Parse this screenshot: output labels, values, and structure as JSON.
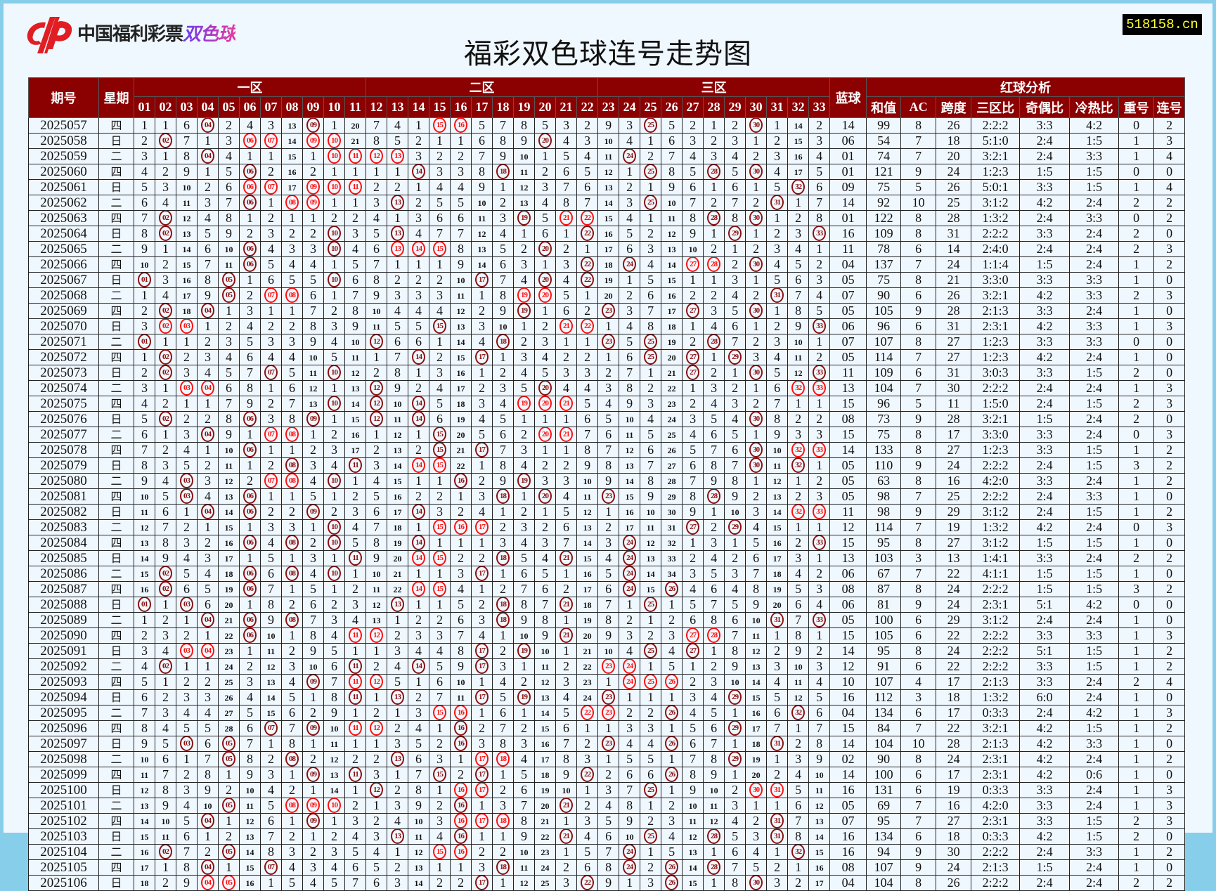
{
  "logo": {
    "text_main": "中国福利彩票",
    "text_game": "双色球"
  },
  "watermark": "518158.cn",
  "title": "福彩双色球连号走势图",
  "colors": {
    "header_bg": "#8b0000",
    "hit_single": "#8b1010",
    "hit_consecutive": "#ff1010",
    "watermark_text": "#ffff33",
    "frame": "#87ceeb",
    "background": "#f0f8ff"
  },
  "headers": {
    "issue": "期号",
    "weekday": "星期",
    "zone1": "一区",
    "zone2": "二区",
    "zone3": "三区",
    "blue": "蓝球",
    "analysis": "红球分析",
    "red_columns": [
      "01",
      "02",
      "03",
      "04",
      "05",
      "06",
      "07",
      "08",
      "09",
      "10",
      "11",
      "12",
      "13",
      "14",
      "15",
      "16",
      "17",
      "18",
      "19",
      "20",
      "21",
      "22",
      "23",
      "24",
      "25",
      "26",
      "27",
      "28",
      "29",
      "30",
      "31",
      "32",
      "33"
    ],
    "analysis_columns": [
      "和值",
      "AC",
      "跨度",
      "三区比",
      "奇偶比",
      "冷热比",
      "重号",
      "连号"
    ]
  },
  "first_row_cells": [
    "1",
    "1",
    "6",
    "04",
    "2",
    "4",
    "3",
    "13",
    "09",
    "1",
    "20",
    "7",
    "4",
    "1",
    "15",
    "16",
    "5",
    "7",
    "8",
    "5",
    "3",
    "2",
    "9",
    "3",
    "25",
    "5",
    "2",
    "1",
    "2",
    "30",
    "1",
    "14",
    "2"
  ],
  "rows": [
    {
      "issue": "2025057",
      "weekday": "四",
      "red": [
        4,
        9,
        15,
        16,
        25,
        30
      ],
      "blue": "14",
      "sum": 99,
      "ac": 8,
      "span": 26,
      "zone_ratio": "2:2:2",
      "odd_even": "3:3",
      "hot_cold": "4:2",
      "repeat": 0,
      "consecutive": 2
    },
    {
      "issue": "2025058",
      "weekday": "日",
      "red": [
        2,
        6,
        7,
        9,
        10,
        20
      ],
      "blue": "06",
      "sum": 54,
      "ac": 7,
      "span": 18,
      "zone_ratio": "5:1:0",
      "odd_even": "2:4",
      "hot_cold": "1:5",
      "repeat": 1,
      "consecutive": 3
    },
    {
      "issue": "2025059",
      "weekday": "二",
      "red": [
        4,
        10,
        11,
        12,
        13,
        24
      ],
      "blue": "01",
      "sum": 74,
      "ac": 7,
      "span": 20,
      "zone_ratio": "3:2:1",
      "odd_even": "2:4",
      "hot_cold": "3:3",
      "repeat": 1,
      "consecutive": 4
    },
    {
      "issue": "2025060",
      "weekday": "四",
      "red": [
        6,
        14,
        18,
        25,
        28,
        30
      ],
      "blue": "01",
      "sum": 121,
      "ac": 9,
      "span": 24,
      "zone_ratio": "1:2:3",
      "odd_even": "1:5",
      "hot_cold": "1:5",
      "repeat": 0,
      "consecutive": 0
    },
    {
      "issue": "2025061",
      "weekday": "日",
      "red": [
        6,
        7,
        9,
        10,
        11,
        32
      ],
      "blue": "09",
      "sum": 75,
      "ac": 5,
      "span": 26,
      "zone_ratio": "5:0:1",
      "odd_even": "3:3",
      "hot_cold": "1:5",
      "repeat": 1,
      "consecutive": 4
    },
    {
      "issue": "2025062",
      "weekday": "二",
      "red": [
        6,
        8,
        9,
        13,
        25,
        31
      ],
      "blue": "14",
      "sum": 92,
      "ac": 10,
      "span": 25,
      "zone_ratio": "3:1:2",
      "odd_even": "4:2",
      "hot_cold": "2:4",
      "repeat": 2,
      "consecutive": 2
    },
    {
      "issue": "2025063",
      "weekday": "四",
      "red": [
        2,
        19,
        21,
        22,
        28,
        30
      ],
      "blue": "01",
      "sum": 122,
      "ac": 8,
      "span": 28,
      "zone_ratio": "1:3:2",
      "odd_even": "2:4",
      "hot_cold": "3:3",
      "repeat": 0,
      "consecutive": 2
    },
    {
      "issue": "2025064",
      "weekday": "日",
      "red": [
        2,
        10,
        13,
        22,
        29,
        33
      ],
      "blue": "16",
      "sum": 109,
      "ac": 8,
      "span": 31,
      "zone_ratio": "2:2:2",
      "odd_even": "3:3",
      "hot_cold": "2:4",
      "repeat": 2,
      "consecutive": 0
    },
    {
      "issue": "2025065",
      "weekday": "二",
      "red": [
        6,
        10,
        13,
        14,
        15,
        20
      ],
      "blue": "11",
      "sum": 78,
      "ac": 6,
      "span": 14,
      "zone_ratio": "2:4:0",
      "odd_even": "2:4",
      "hot_cold": "2:4",
      "repeat": 2,
      "consecutive": 3
    },
    {
      "issue": "2025066",
      "weekday": "四",
      "red": [
        6,
        22,
        24,
        27,
        28,
        30
      ],
      "blue": "04",
      "sum": 137,
      "ac": 7,
      "span": 24,
      "zone_ratio": "1:1:4",
      "odd_even": "1:5",
      "hot_cold": "2:4",
      "repeat": 1,
      "consecutive": 2
    },
    {
      "issue": "2025067",
      "weekday": "日",
      "red": [
        1,
        5,
        10,
        17,
        20,
        22
      ],
      "blue": "05",
      "sum": 75,
      "ac": 8,
      "span": 21,
      "zone_ratio": "3:3:0",
      "odd_even": "3:3",
      "hot_cold": "3:3",
      "repeat": 1,
      "consecutive": 0
    },
    {
      "issue": "2025068",
      "weekday": "二",
      "red": [
        5,
        7,
        8,
        19,
        20,
        31
      ],
      "blue": "07",
      "sum": 90,
      "ac": 6,
      "span": 26,
      "zone_ratio": "3:2:1",
      "odd_even": "4:2",
      "hot_cold": "3:3",
      "repeat": 2,
      "consecutive": 3
    },
    {
      "issue": "2025069",
      "weekday": "四",
      "red": [
        2,
        4,
        19,
        23,
        27,
        30
      ],
      "blue": "05",
      "sum": 105,
      "ac": 9,
      "span": 28,
      "zone_ratio": "2:1:3",
      "odd_even": "3:3",
      "hot_cold": "2:4",
      "repeat": 1,
      "consecutive": 0
    },
    {
      "issue": "2025070",
      "weekday": "日",
      "red": [
        2,
        3,
        15,
        21,
        22,
        33
      ],
      "blue": "06",
      "sum": 96,
      "ac": 6,
      "span": 31,
      "zone_ratio": "2:3:1",
      "odd_even": "4:2",
      "hot_cold": "3:3",
      "repeat": 1,
      "consecutive": 3
    },
    {
      "issue": "2025071",
      "weekday": "二",
      "red": [
        1,
        12,
        18,
        23,
        25,
        28
      ],
      "blue": "07",
      "sum": 107,
      "ac": 8,
      "span": 27,
      "zone_ratio": "1:2:3",
      "odd_even": "3:3",
      "hot_cold": "3:3",
      "repeat": 0,
      "consecutive": 0
    },
    {
      "issue": "2025072",
      "weekday": "四",
      "red": [
        2,
        14,
        17,
        25,
        27,
        29
      ],
      "blue": "05",
      "sum": 114,
      "ac": 7,
      "span": 27,
      "zone_ratio": "1:2:3",
      "odd_even": "4:2",
      "hot_cold": "2:4",
      "repeat": 1,
      "consecutive": 0
    },
    {
      "issue": "2025073",
      "weekday": "日",
      "red": [
        2,
        7,
        10,
        27,
        30,
        33
      ],
      "blue": "11",
      "sum": 109,
      "ac": 6,
      "span": 31,
      "zone_ratio": "3:0:3",
      "odd_even": "3:3",
      "hot_cold": "1:5",
      "repeat": 2,
      "consecutive": 0
    },
    {
      "issue": "2025074",
      "weekday": "二",
      "red": [
        3,
        4,
        12,
        20,
        32,
        33
      ],
      "blue": "13",
      "sum": 104,
      "ac": 7,
      "span": 30,
      "zone_ratio": "2:2:2",
      "odd_even": "2:4",
      "hot_cold": "2:4",
      "repeat": 1,
      "consecutive": 3
    },
    {
      "issue": "2025075",
      "weekday": "四",
      "red": [
        10,
        12,
        14,
        19,
        20,
        21
      ],
      "blue": "15",
      "sum": 96,
      "ac": 5,
      "span": 11,
      "zone_ratio": "1:5:0",
      "odd_even": "2:4",
      "hot_cold": "1:5",
      "repeat": 2,
      "consecutive": 3
    },
    {
      "issue": "2025076",
      "weekday": "日",
      "red": [
        2,
        6,
        9,
        12,
        14,
        30
      ],
      "blue": "08",
      "sum": 73,
      "ac": 9,
      "span": 28,
      "zone_ratio": "3:2:1",
      "odd_even": "1:5",
      "hot_cold": "2:4",
      "repeat": 2,
      "consecutive": 0
    },
    {
      "issue": "2025077",
      "weekday": "二",
      "red": [
        4,
        7,
        8,
        15,
        20,
        21
      ],
      "blue": "15",
      "sum": 75,
      "ac": 8,
      "span": 17,
      "zone_ratio": "3:3:0",
      "odd_even": "3:3",
      "hot_cold": "2:4",
      "repeat": 0,
      "consecutive": 3
    },
    {
      "issue": "2025078",
      "weekday": "四",
      "red": [
        6,
        15,
        17,
        30,
        32,
        33
      ],
      "blue": "14",
      "sum": 133,
      "ac": 8,
      "span": 27,
      "zone_ratio": "1:2:3",
      "odd_even": "3:3",
      "hot_cold": "1:5",
      "repeat": 1,
      "consecutive": 2
    },
    {
      "issue": "2025079",
      "weekday": "日",
      "red": [
        8,
        11,
        14,
        15,
        30,
        32
      ],
      "blue": "05",
      "sum": 110,
      "ac": 9,
      "span": 24,
      "zone_ratio": "2:2:2",
      "odd_even": "2:4",
      "hot_cold": "1:5",
      "repeat": 3,
      "consecutive": 2
    },
    {
      "issue": "2025080",
      "weekday": "二",
      "red": [
        3,
        7,
        8,
        10,
        16,
        19
      ],
      "blue": "05",
      "sum": 63,
      "ac": 8,
      "span": 16,
      "zone_ratio": "4:2:0",
      "odd_even": "3:3",
      "hot_cold": "2:4",
      "repeat": 1,
      "consecutive": 2
    },
    {
      "issue": "2025081",
      "weekday": "四",
      "red": [
        3,
        6,
        18,
        20,
        23,
        28
      ],
      "blue": "05",
      "sum": 98,
      "ac": 7,
      "span": 25,
      "zone_ratio": "2:2:2",
      "odd_even": "2:4",
      "hot_cold": "3:3",
      "repeat": 1,
      "consecutive": 0
    },
    {
      "issue": "2025082",
      "weekday": "日",
      "red": [
        4,
        6,
        9,
        14,
        32,
        33
      ],
      "blue": "11",
      "sum": 98,
      "ac": 9,
      "span": 29,
      "zone_ratio": "3:1:2",
      "odd_even": "2:4",
      "hot_cold": "1:5",
      "repeat": 1,
      "consecutive": 2
    },
    {
      "issue": "2025083",
      "weekday": "二",
      "red": [
        10,
        15,
        16,
        17,
        27,
        29
      ],
      "blue": "12",
      "sum": 114,
      "ac": 7,
      "span": 19,
      "zone_ratio": "1:3:2",
      "odd_even": "4:2",
      "hot_cold": "2:4",
      "repeat": 0,
      "consecutive": 3
    },
    {
      "issue": "2025084",
      "weekday": "四",
      "red": [
        6,
        8,
        10,
        14,
        24,
        33
      ],
      "blue": "15",
      "sum": 95,
      "ac": 8,
      "span": 27,
      "zone_ratio": "3:1:2",
      "odd_even": "1:5",
      "hot_cold": "1:5",
      "repeat": 1,
      "consecutive": 0
    },
    {
      "issue": "2025085",
      "weekday": "日",
      "red": [
        11,
        14,
        15,
        18,
        21,
        24
      ],
      "blue": "13",
      "sum": 103,
      "ac": 3,
      "span": 13,
      "zone_ratio": "1:4:1",
      "odd_even": "3:3",
      "hot_cold": "2:4",
      "repeat": 2,
      "consecutive": 2
    },
    {
      "issue": "2025086",
      "weekday": "二",
      "red": [
        2,
        6,
        8,
        10,
        17,
        24
      ],
      "blue": "06",
      "sum": 67,
      "ac": 7,
      "span": 22,
      "zone_ratio": "4:1:1",
      "odd_even": "1:5",
      "hot_cold": "1:5",
      "repeat": 1,
      "consecutive": 0
    },
    {
      "issue": "2025087",
      "weekday": "四",
      "red": [
        2,
        6,
        14,
        15,
        24,
        26
      ],
      "blue": "08",
      "sum": 87,
      "ac": 8,
      "span": 24,
      "zone_ratio": "2:2:2",
      "odd_even": "1:5",
      "hot_cold": "1:5",
      "repeat": 3,
      "consecutive": 2
    },
    {
      "issue": "2025088",
      "weekday": "日",
      "red": [
        1,
        3,
        13,
        18,
        21,
        25
      ],
      "blue": "06",
      "sum": 81,
      "ac": 9,
      "span": 24,
      "zone_ratio": "2:3:1",
      "odd_even": "5:1",
      "hot_cold": "4:2",
      "repeat": 0,
      "consecutive": 0
    },
    {
      "issue": "2025089",
      "weekday": "二",
      "red": [
        4,
        6,
        8,
        18,
        31,
        33
      ],
      "blue": "05",
      "sum": 100,
      "ac": 6,
      "span": 29,
      "zone_ratio": "3:1:2",
      "odd_even": "2:4",
      "hot_cold": "2:4",
      "repeat": 1,
      "consecutive": 0
    },
    {
      "issue": "2025090",
      "weekday": "四",
      "red": [
        6,
        11,
        12,
        21,
        27,
        28
      ],
      "blue": "15",
      "sum": 105,
      "ac": 6,
      "span": 22,
      "zone_ratio": "2:2:2",
      "odd_even": "3:3",
      "hot_cold": "3:3",
      "repeat": 1,
      "consecutive": 3
    },
    {
      "issue": "2025091",
      "weekday": "日",
      "red": [
        3,
        4,
        17,
        19,
        25,
        27
      ],
      "blue": "14",
      "sum": 95,
      "ac": 8,
      "span": 24,
      "zone_ratio": "2:2:2",
      "odd_even": "5:1",
      "hot_cold": "1:5",
      "repeat": 1,
      "consecutive": 2
    },
    {
      "issue": "2025092",
      "weekday": "二",
      "red": [
        2,
        11,
        14,
        17,
        23,
        24
      ],
      "blue": "12",
      "sum": 91,
      "ac": 6,
      "span": 22,
      "zone_ratio": "2:2:2",
      "odd_even": "3:3",
      "hot_cold": "1:5",
      "repeat": 1,
      "consecutive": 2
    },
    {
      "issue": "2025093",
      "weekday": "四",
      "red": [
        9,
        11,
        12,
        24,
        25,
        26
      ],
      "blue": "10",
      "sum": 107,
      "ac": 4,
      "span": 17,
      "zone_ratio": "2:1:3",
      "odd_even": "3:3",
      "hot_cold": "2:4",
      "repeat": 2,
      "consecutive": 4
    },
    {
      "issue": "2025094",
      "weekday": "日",
      "red": [
        11,
        13,
        17,
        19,
        23,
        29
      ],
      "blue": "16",
      "sum": 112,
      "ac": 3,
      "span": 18,
      "zone_ratio": "1:3:2",
      "odd_even": "6:0",
      "hot_cold": "2:4",
      "repeat": 1,
      "consecutive": 0
    },
    {
      "issue": "2025095",
      "weekday": "二",
      "red": [
        15,
        16,
        22,
        23,
        26,
        32
      ],
      "blue": "04",
      "sum": 134,
      "ac": 6,
      "span": 17,
      "zone_ratio": "0:3:3",
      "odd_even": "2:4",
      "hot_cold": "4:2",
      "repeat": 1,
      "consecutive": 3
    },
    {
      "issue": "2025096",
      "weekday": "四",
      "red": [
        7,
        9,
        11,
        12,
        16,
        29
      ],
      "blue": "15",
      "sum": 84,
      "ac": 7,
      "span": 22,
      "zone_ratio": "3:2:1",
      "odd_even": "4:2",
      "hot_cold": "1:5",
      "repeat": 1,
      "consecutive": 2
    },
    {
      "issue": "2025097",
      "weekday": "日",
      "red": [
        3,
        5,
        16,
        23,
        26,
        31
      ],
      "blue": "14",
      "sum": 104,
      "ac": 10,
      "span": 28,
      "zone_ratio": "2:1:3",
      "odd_even": "4:2",
      "hot_cold": "3:3",
      "repeat": 1,
      "consecutive": 0
    },
    {
      "issue": "2025098",
      "weekday": "二",
      "red": [
        5,
        8,
        13,
        17,
        18,
        29
      ],
      "blue": "02",
      "sum": 90,
      "ac": 8,
      "span": 24,
      "zone_ratio": "2:3:1",
      "odd_even": "4:2",
      "hot_cold": "2:4",
      "repeat": 1,
      "consecutive": 2
    },
    {
      "issue": "2025099",
      "weekday": "四",
      "red": [
        9,
        11,
        15,
        17,
        22,
        26
      ],
      "blue": "14",
      "sum": 100,
      "ac": 6,
      "span": 17,
      "zone_ratio": "2:3:1",
      "odd_even": "4:2",
      "hot_cold": "0:6",
      "repeat": 1,
      "consecutive": 0
    },
    {
      "issue": "2025100",
      "weekday": "日",
      "red": [
        12,
        16,
        17,
        25,
        30,
        31
      ],
      "blue": "16",
      "sum": 131,
      "ac": 6,
      "span": 19,
      "zone_ratio": "0:3:3",
      "odd_even": "3:3",
      "hot_cold": "2:4",
      "repeat": 1,
      "consecutive": 3
    },
    {
      "issue": "2025101",
      "weekday": "二",
      "red": [
        5,
        8,
        9,
        10,
        16,
        21
      ],
      "blue": "05",
      "sum": 69,
      "ac": 7,
      "span": 16,
      "zone_ratio": "4:2:0",
      "odd_even": "3:3",
      "hot_cold": "2:4",
      "repeat": 1,
      "consecutive": 3
    },
    {
      "issue": "2025102",
      "weekday": "四",
      "red": [
        4,
        9,
        16,
        17,
        18,
        31
      ],
      "blue": "07",
      "sum": 95,
      "ac": 7,
      "span": 27,
      "zone_ratio": "2:3:1",
      "odd_even": "3:3",
      "hot_cold": "1:5",
      "repeat": 2,
      "consecutive": 3
    },
    {
      "issue": "2025103",
      "weekday": "日",
      "red": [
        13,
        16,
        21,
        25,
        28,
        31
      ],
      "blue": "16",
      "sum": 134,
      "ac": 6,
      "span": 18,
      "zone_ratio": "0:3:3",
      "odd_even": "4:2",
      "hot_cold": "1:5",
      "repeat": 2,
      "consecutive": 0
    },
    {
      "issue": "2025104",
      "weekday": "二",
      "red": [
        2,
        5,
        15,
        16,
        24,
        32
      ],
      "blue": "16",
      "sum": 94,
      "ac": 9,
      "span": 30,
      "zone_ratio": "2:2:2",
      "odd_even": "2:4",
      "hot_cold": "3:3",
      "repeat": 1,
      "consecutive": 2
    },
    {
      "issue": "2025105",
      "weekday": "四",
      "red": [
        4,
        7,
        18,
        24,
        26,
        28
      ],
      "blue": "08",
      "sum": 107,
      "ac": 9,
      "span": 24,
      "zone_ratio": "2:1:3",
      "odd_even": "1:5",
      "hot_cold": "2:4",
      "repeat": 1,
      "consecutive": 0
    },
    {
      "issue": "2025106",
      "weekday": "日",
      "red": [
        4,
        5,
        17,
        22,
        26,
        30
      ],
      "blue": "04",
      "sum": 104,
      "ac": 8,
      "span": 26,
      "zone_ratio": "2:2:2",
      "odd_even": "2:4",
      "hot_cold": "2:4",
      "repeat": 2,
      "consecutive": 2
    }
  ]
}
